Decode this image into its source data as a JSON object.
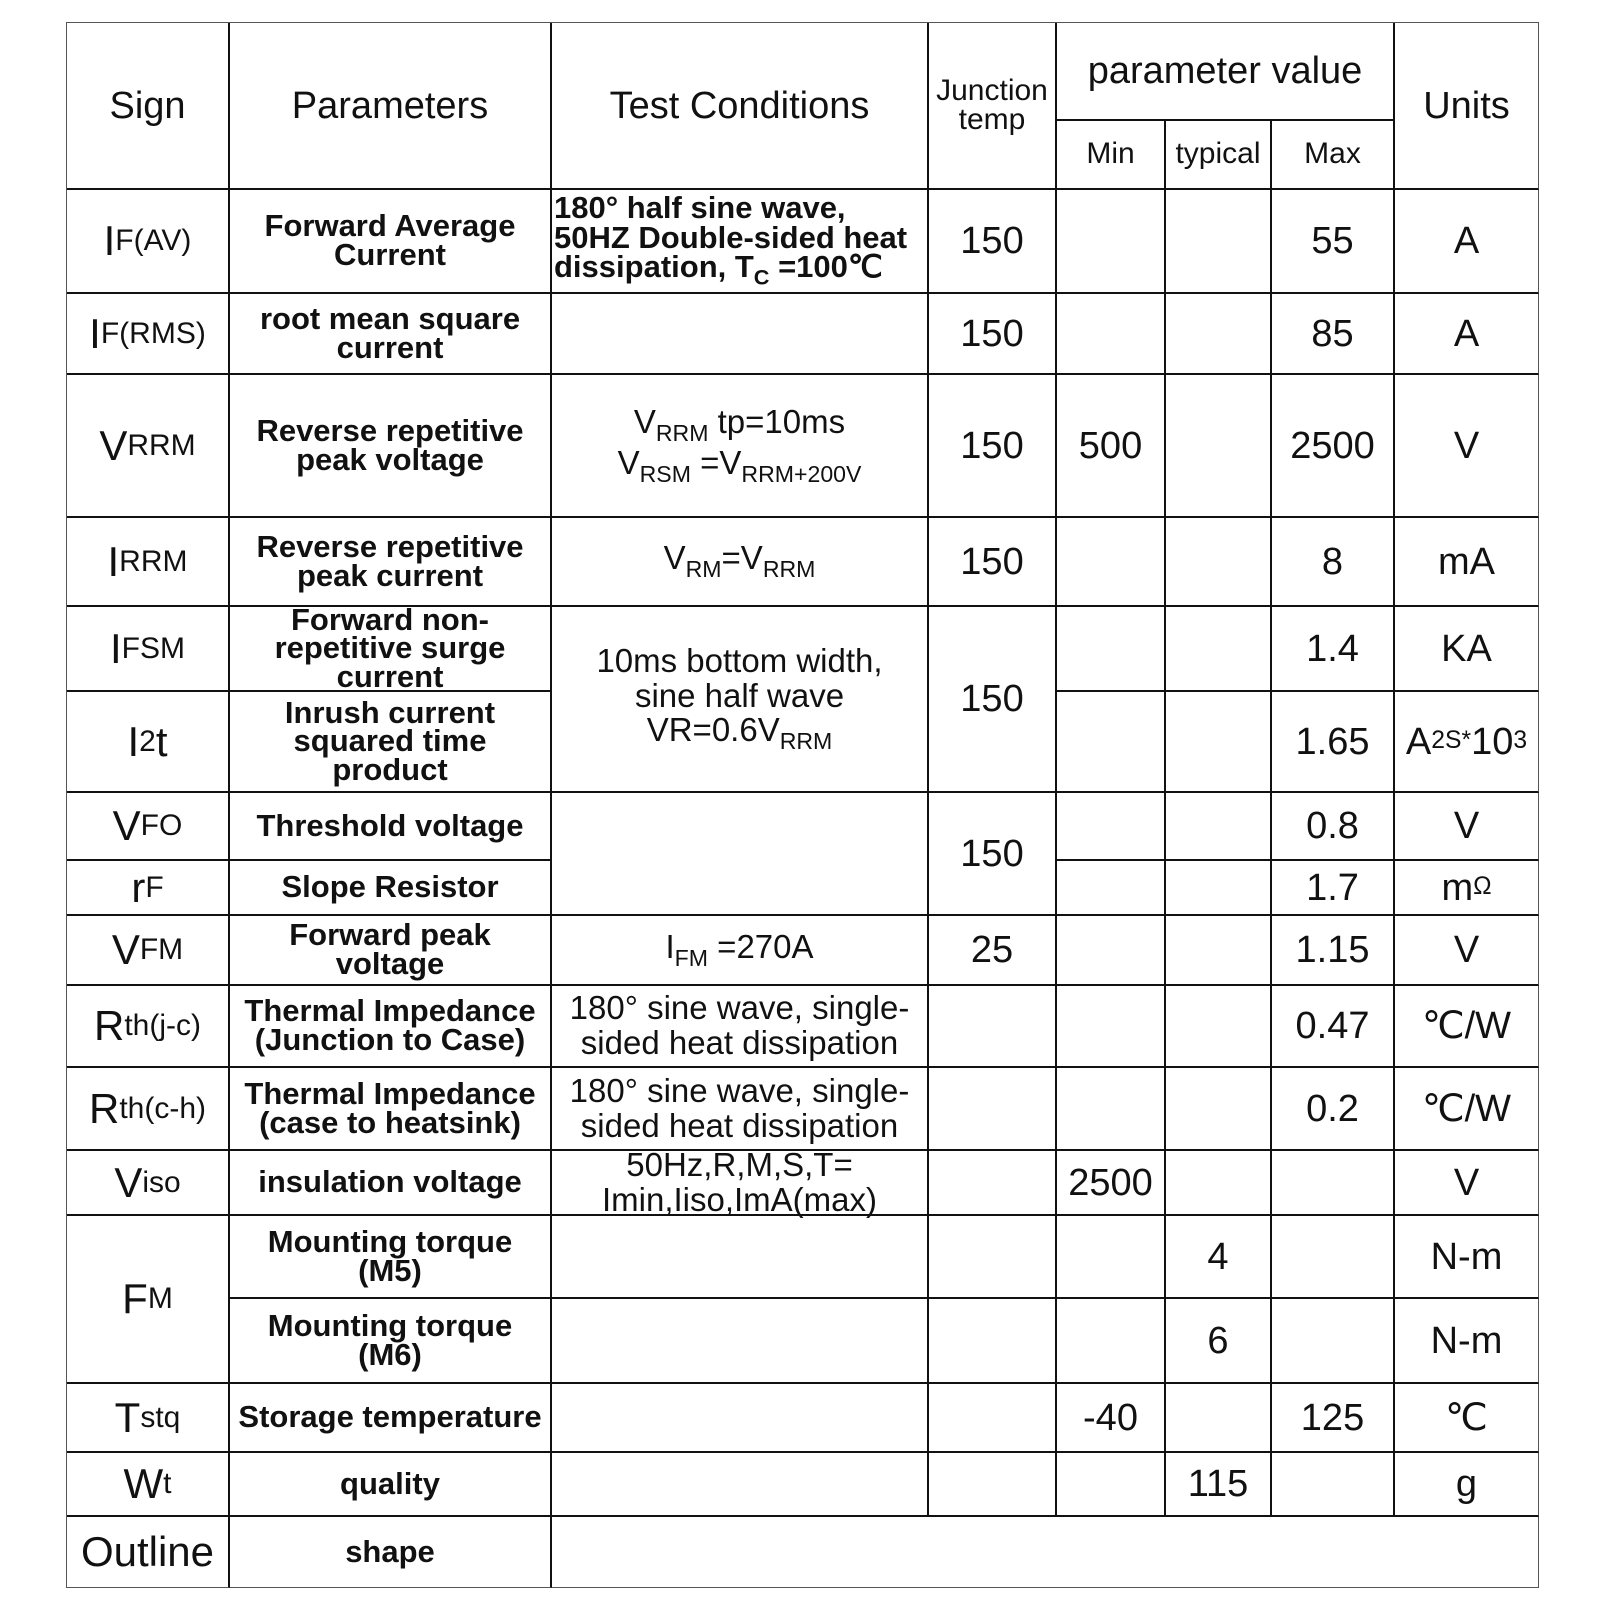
{
  "header": {
    "sign": "Sign",
    "parameters": "Parameters",
    "test_conditions": "Test Conditions",
    "junction_temp": [
      "Junction",
      "temp"
    ],
    "parameter_value": "parameter value",
    "min": "Min",
    "typical": "typical",
    "max": "Max",
    "units": "Units"
  },
  "rows": [
    {
      "sign": [
        {
          "t": "I"
        },
        {
          "sub": "F(AV)"
        }
      ],
      "param": "Forward Average Current",
      "cond": [
        [
          {
            "t": "180° half sine wave,"
          }
        ],
        [
          {
            "t": "50HZ Double-sided heat"
          }
        ],
        [
          {
            "t": "dissipation, T"
          },
          {
            "sub": "C"
          },
          {
            "t": " =100℃"
          }
        ]
      ],
      "tj": "150",
      "min": "",
      "typ": "",
      "max": "55",
      "unit": [
        {
          "t": "A"
        }
      ]
    },
    {
      "sign": [
        {
          "t": "I"
        },
        {
          "sub": "F(RMS)"
        }
      ],
      "param": "root mean square current",
      "cond": [],
      "tj": "150",
      "min": "",
      "typ": "",
      "max": "85",
      "unit": [
        {
          "t": "A"
        }
      ]
    },
    {
      "sign": [
        {
          "t": "V"
        },
        {
          "sub": "RRM"
        }
      ],
      "param": "Reverse repetitive peak voltage",
      "cond": [
        [
          {
            "t": "V"
          },
          {
            "sub": "RRM"
          },
          {
            "t": " tp=10ms"
          }
        ],
        [
          {
            "t": "V"
          },
          {
            "sub": "RSM"
          },
          {
            "t": " =V"
          },
          {
            "sub": "RRM+200V"
          }
        ]
      ],
      "tj": "150",
      "min": "500",
      "typ": "",
      "max": "2500",
      "unit": [
        {
          "t": "V"
        }
      ]
    },
    {
      "sign": [
        {
          "t": "I"
        },
        {
          "sub": "RRM"
        }
      ],
      "param": "Reverse repetitive peak current",
      "cond": [
        [
          {
            "t": "V"
          },
          {
            "sub": "RM"
          },
          {
            "t": "=V"
          },
          {
            "sub": "RRM"
          }
        ]
      ],
      "tj": "150",
      "min": "",
      "typ": "",
      "max": "8",
      "unit": [
        {
          "t": "mA"
        }
      ]
    },
    {
      "sign": [
        {
          "t": "I"
        },
        {
          "sub": "FSM"
        }
      ],
      "param": "Forward non-repetitive surge current",
      "cond": [
        [
          {
            "t": "10ms bottom width,"
          }
        ],
        [
          {
            "t": "sine half wave"
          }
        ],
        [
          {
            "t": "VR=0.6V"
          },
          {
            "sub": "RRM"
          }
        ]
      ],
      "tj": "150",
      "min": "",
      "typ": "",
      "max": "1.4",
      "unit": [
        {
          "t": "KA"
        }
      ]
    },
    {
      "sign": [
        {
          "t": "I"
        },
        {
          "sup": "2"
        },
        {
          "t": "t"
        }
      ],
      "param": "Inrush current squared time product",
      "min": "",
      "typ": "",
      "max": "1.65",
      "unit": [
        {
          "t": "A"
        },
        {
          "sup": "2S*"
        },
        {
          "t": " 10"
        },
        {
          "sup": "3"
        }
      ]
    },
    {
      "sign": [
        {
          "t": "V"
        },
        {
          "sub": "FO"
        }
      ],
      "param": "Threshold voltage",
      "cond": [],
      "tj": "150",
      "min": "",
      "typ": "",
      "max": "0.8",
      "unit": [
        {
          "t": "V"
        }
      ]
    },
    {
      "sign": [
        {
          "t": "r"
        },
        {
          "sub": "F"
        }
      ],
      "param": "Slope Resistor",
      "min": "",
      "typ": "",
      "max": "1.7",
      "unit": [
        {
          "t": "m"
        },
        {
          "sup": "Ω"
        }
      ]
    },
    {
      "sign": [
        {
          "t": "V"
        },
        {
          "sub": "FM"
        }
      ],
      "param": "Forward peak voltage",
      "cond": [
        [
          {
            "t": "I"
          },
          {
            "sub": "FM"
          },
          {
            "t": " =270A"
          }
        ]
      ],
      "tj": "25",
      "min": "",
      "typ": "",
      "max": "1.15",
      "unit": [
        {
          "t": "V"
        }
      ]
    },
    {
      "sign": [
        {
          "t": "R"
        },
        {
          "sub": "th(j-c)"
        }
      ],
      "param": "Thermal Impedance (Junction to Case)",
      "cond": [
        [
          {
            "t": "180° sine wave, single-"
          }
        ],
        [
          {
            "t": "sided  heat dissipation"
          }
        ]
      ],
      "tj": "",
      "min": "",
      "typ": "",
      "max": "0.47",
      "unit": [
        {
          "t": "℃/W"
        }
      ]
    },
    {
      "sign": [
        {
          "t": "R"
        },
        {
          "sub": "th(c-h)"
        }
      ],
      "param": "Thermal Impedance (case to heatsink)",
      "cond": [
        [
          {
            "t": "180° sine wave, single-"
          }
        ],
        [
          {
            "t": "sided  heat dissipation"
          }
        ]
      ],
      "tj": "",
      "min": "",
      "typ": "",
      "max": "0.2",
      "unit": [
        {
          "t": "℃/W"
        }
      ]
    },
    {
      "sign": [
        {
          "t": "V"
        },
        {
          "sub": "iso"
        }
      ],
      "param": "insulation voltage",
      "cond": [
        [
          {
            "t": "50Hz,R,M,S,T="
          }
        ],
        [
          {
            "t": "Imin,Iiso,ImA(max)"
          }
        ]
      ],
      "tj": "",
      "min": "2500",
      "typ": "",
      "max": "",
      "unit": [
        {
          "t": "V"
        }
      ]
    },
    {
      "sign": [
        {
          "t": "F"
        },
        {
          "sub": "M"
        }
      ],
      "param": "Mounting torque (M5)",
      "cond": [],
      "tj": "",
      "min": "",
      "typ": "4",
      "max": "",
      "unit": [
        {
          "t": "N-m"
        }
      ]
    },
    {
      "param": "Mounting torque (M6)",
      "cond": [],
      "tj": "",
      "min": "",
      "typ": "6",
      "max": "",
      "unit": [
        {
          "t": "N-m"
        }
      ]
    },
    {
      "sign": [
        {
          "t": "T"
        },
        {
          "sub": "stq"
        }
      ],
      "param": "Storage temperature",
      "cond": [],
      "tj": "",
      "min": "-40",
      "typ": "",
      "max": "125",
      "unit": [
        {
          "t": "℃"
        }
      ]
    },
    {
      "sign": [
        {
          "t": "W"
        },
        {
          "sub": "t"
        }
      ],
      "param": "quality",
      "cond": [],
      "tj": "",
      "min": "",
      "typ": "115",
      "max": "",
      "unit": [
        {
          "t": "g"
        }
      ]
    },
    {
      "sign": [
        {
          "t": "Outline"
        }
      ],
      "param": "shape"
    }
  ]
}
